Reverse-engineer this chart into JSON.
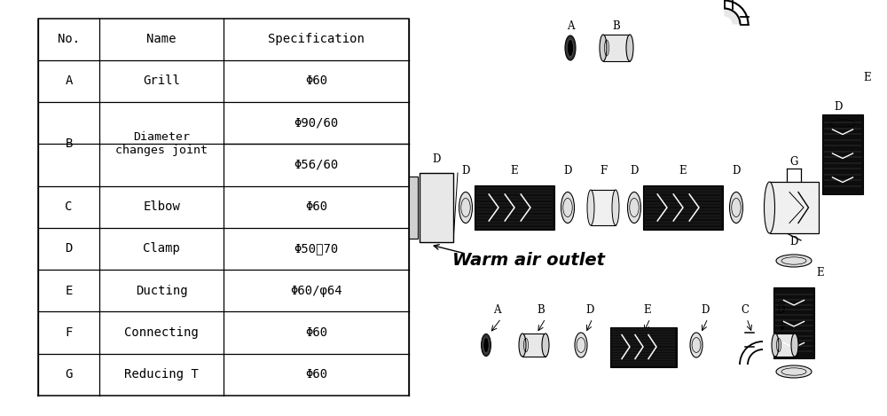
{
  "table_headers": [
    "No.",
    "Name",
    "Specification"
  ],
  "table_rows": [
    [
      "A",
      "Grill",
      "Φ60"
    ],
    [
      "B",
      "Diameter\nchanges joint",
      "Φ90/60\nΦ56/60"
    ],
    [
      "C",
      "Elbow",
      "Φ60"
    ],
    [
      "D",
      "Clamp",
      "Φ50～70"
    ],
    [
      "E",
      "Ducting",
      "Φ60/φ64"
    ],
    [
      "F",
      "Connecting",
      "Φ60"
    ],
    [
      "G",
      "Reducing T",
      "Φ60"
    ]
  ],
  "warm_air_outlet_label": "Warm air outlet",
  "bg_color": "#ffffff"
}
